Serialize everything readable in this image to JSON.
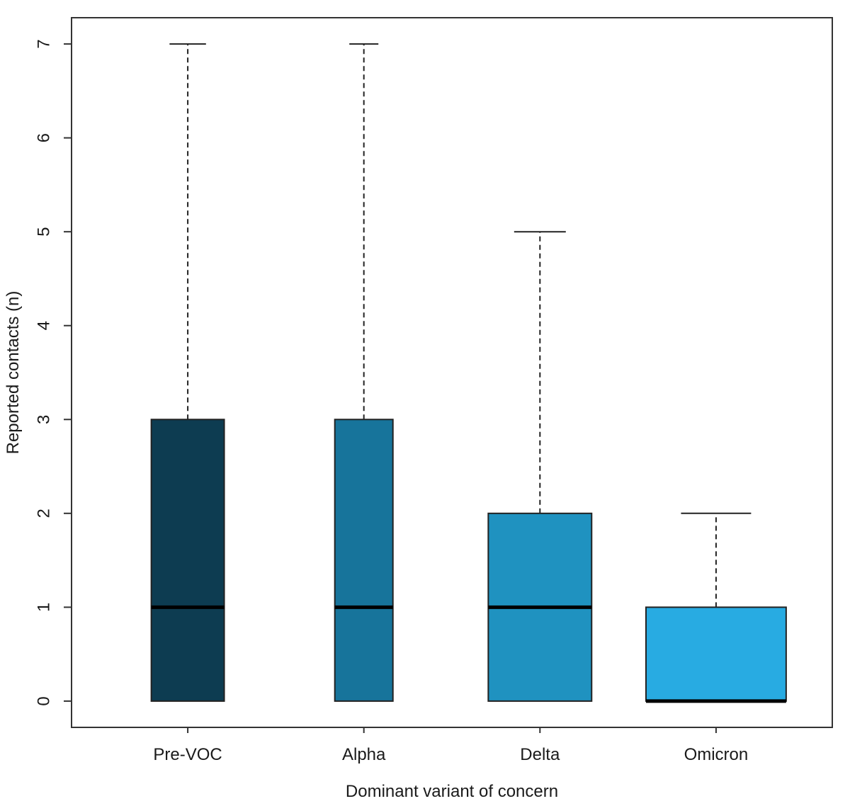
{
  "chart_data": {
    "type": "box",
    "title": "",
    "xlabel": "Dominant variant of concern",
    "ylabel": "Reported contacts (n)",
    "categories": [
      "Pre-VOC",
      "Alpha",
      "Delta",
      "Omicron"
    ],
    "yticks": [
      0,
      1,
      2,
      3,
      4,
      5,
      6,
      7
    ],
    "ylim": [
      -0.28,
      7.28
    ],
    "xlim": [
      0.34,
      4.66
    ],
    "grid": false,
    "legend": "none",
    "series": [
      {
        "name": "Pre-VOC",
        "lower_whisker": 0,
        "q1": 0,
        "median": 1,
        "q3": 3,
        "upper_whisker": 7,
        "box_width": 0.414,
        "fill": "#0D3C51"
      },
      {
        "name": "Alpha",
        "lower_whisker": 0,
        "q1": 0,
        "median": 1,
        "q3": 3,
        "upper_whisker": 7,
        "box_width": 0.33,
        "fill": "#17749B"
      },
      {
        "name": "Delta",
        "lower_whisker": 0,
        "q1": 0,
        "median": 1,
        "q3": 2,
        "upper_whisker": 5,
        "box_width": 0.587,
        "fill": "#1F92C0"
      },
      {
        "name": "Omicron",
        "lower_whisker": 0,
        "q1": 0,
        "median": 0,
        "q3": 1,
        "upper_whisker": 2,
        "box_width": 0.796,
        "fill": "#28ABE2"
      }
    ],
    "colors": {
      "frame": "#333333",
      "box_stroke": "#222222",
      "whisker": "#222222",
      "median": "#000000",
      "text": "#1a1a1a",
      "background": "#ffffff"
    }
  }
}
